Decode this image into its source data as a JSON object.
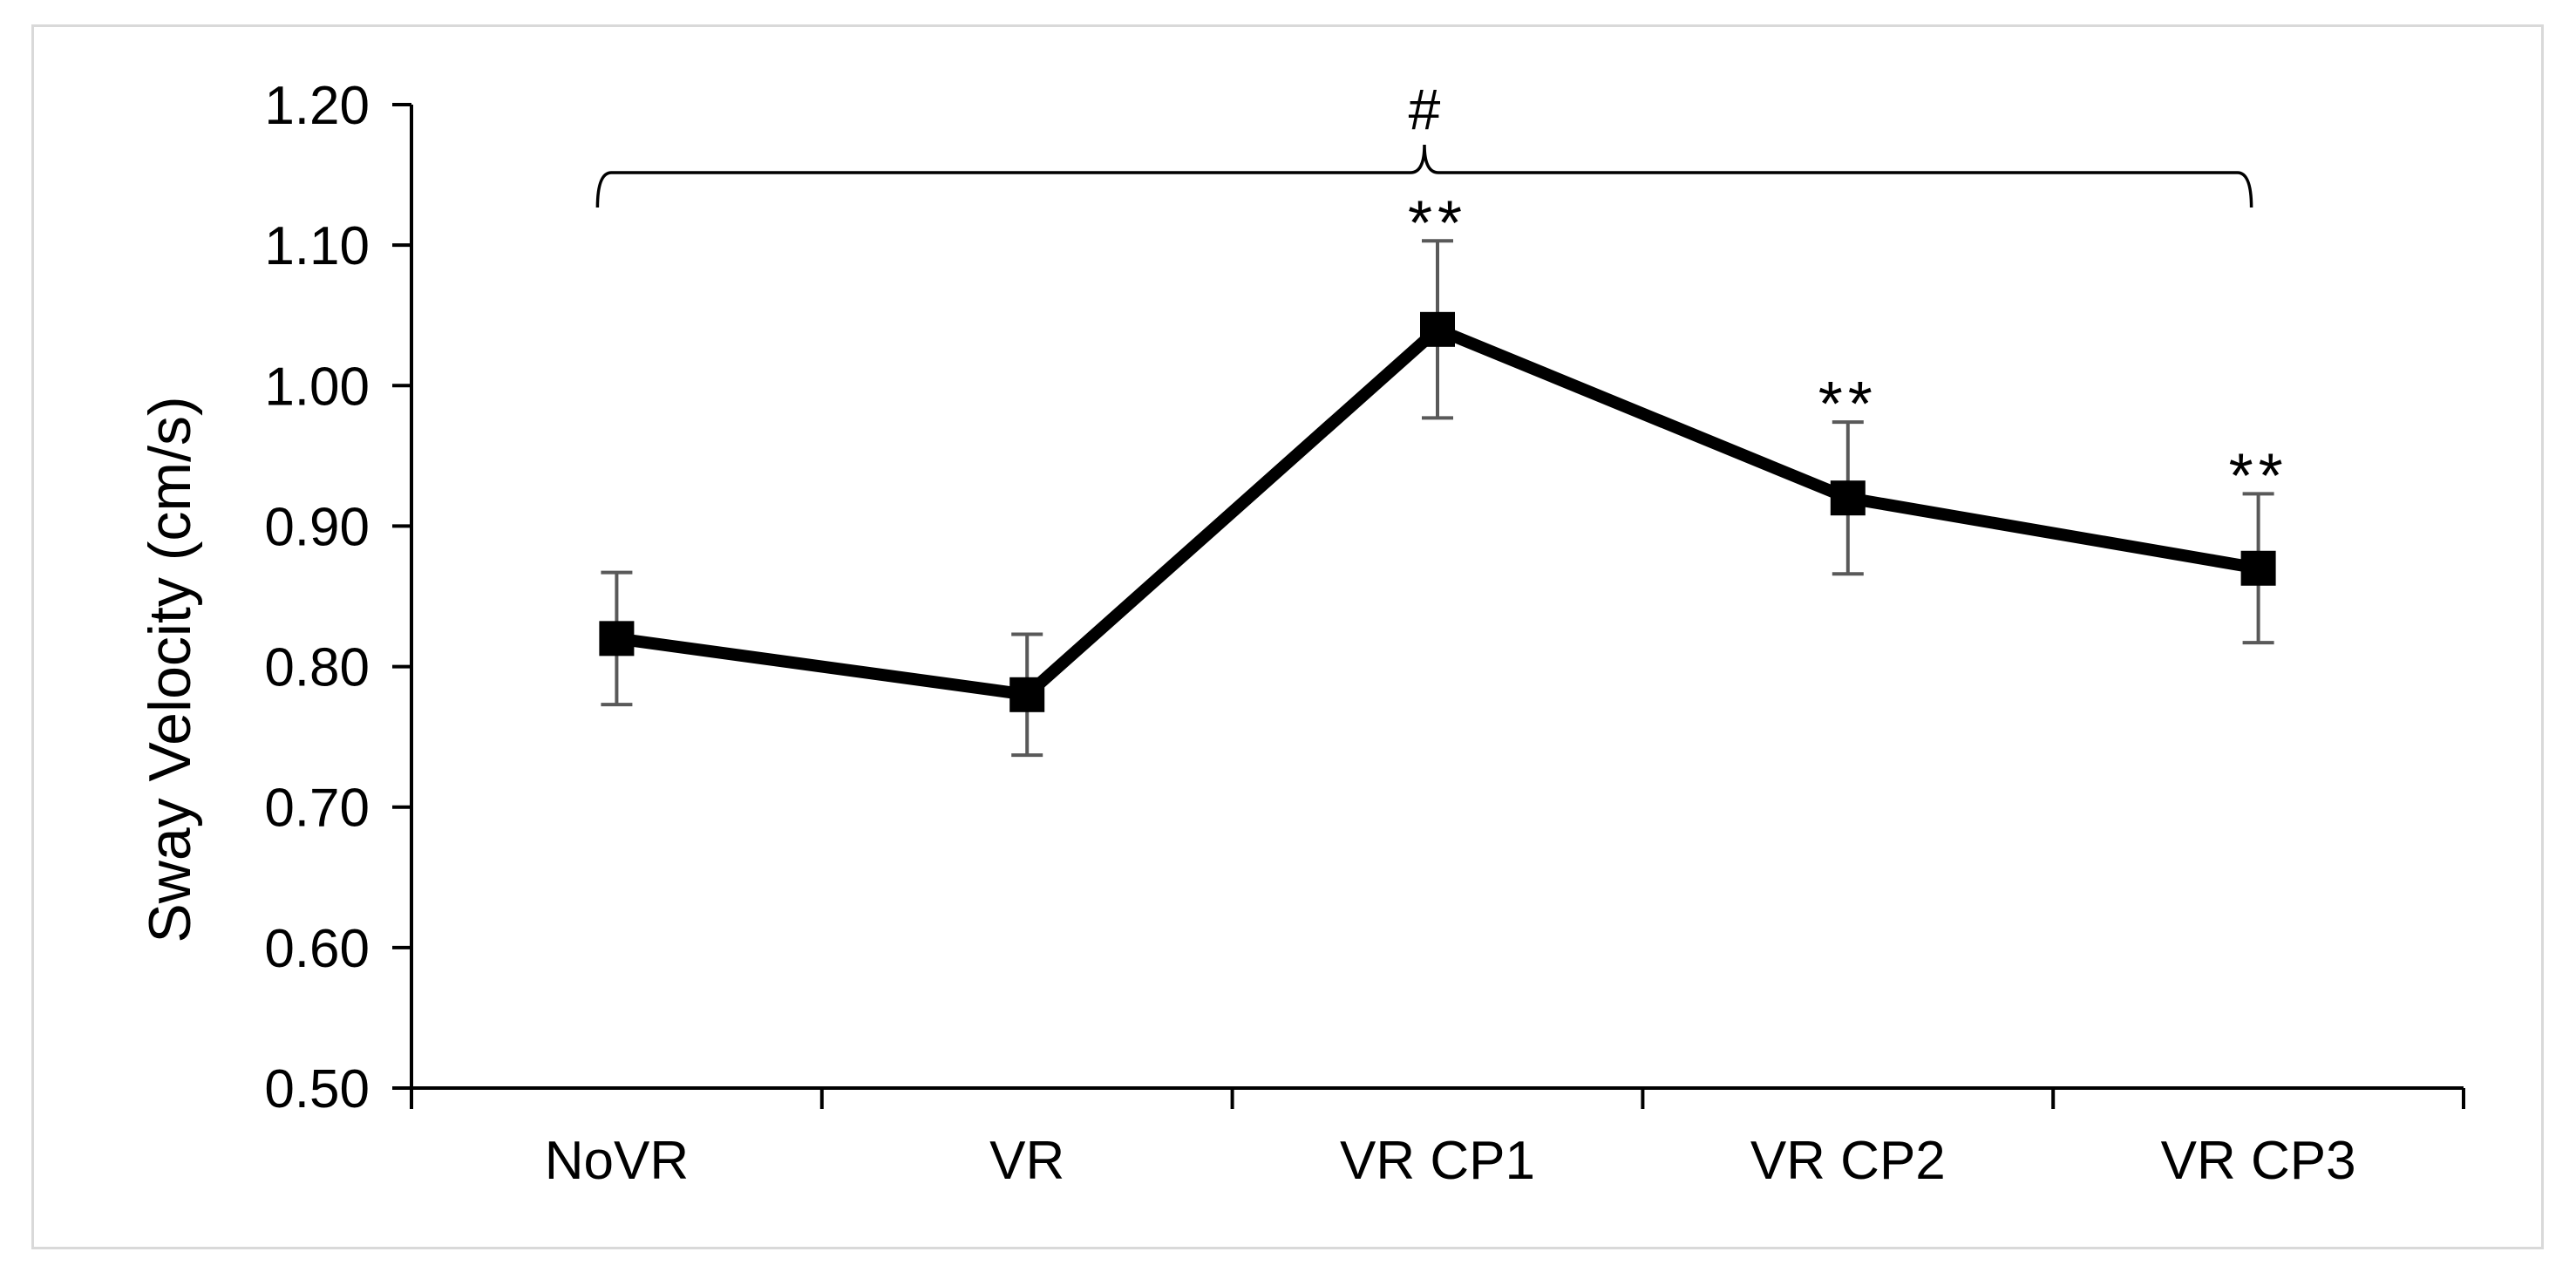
{
  "chart_data": {
    "type": "line",
    "title": "",
    "xlabel": "",
    "ylabel": "Sway Velocity (cm/s)",
    "categories": [
      "NoVR",
      "VR",
      "VR CP1",
      "VR CP2",
      "VR CP3"
    ],
    "series": [
      {
        "name": "Sway Velocity",
        "values": [
          0.82,
          0.78,
          1.04,
          0.92,
          0.87
        ],
        "error": [
          0.047,
          0.043,
          0.063,
          0.054,
          0.053
        ],
        "color": "#000000",
        "error_color": "#595959",
        "marker": "square"
      }
    ],
    "ylim": [
      0.5,
      1.2
    ],
    "yticks": [
      0.5,
      0.6,
      0.7,
      0.8,
      0.9,
      1.0,
      1.1,
      1.2
    ],
    "ytick_labels": [
      "0.50",
      "0.60",
      "0.70",
      "0.80",
      "0.90",
      "1.00",
      "1.10",
      "1.20"
    ],
    "grid": false,
    "annotations": {
      "significance_marks": [
        {
          "category": "VR CP1",
          "text": "**"
        },
        {
          "category": "VR CP2",
          "text": "**"
        },
        {
          "category": "VR CP3",
          "text": "**"
        }
      ],
      "bracket": {
        "from": "NoVR",
        "to": "VR CP3",
        "text": "#"
      }
    }
  }
}
